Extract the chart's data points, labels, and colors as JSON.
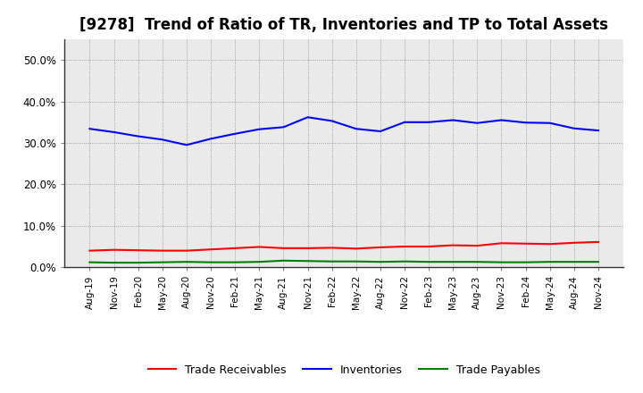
{
  "title": "[9278]  Trend of Ratio of TR, Inventories and TP to Total Assets",
  "x_labels": [
    "Aug-19",
    "Nov-19",
    "Feb-20",
    "May-20",
    "Aug-20",
    "Nov-20",
    "Feb-21",
    "May-21",
    "Aug-21",
    "Nov-21",
    "Feb-22",
    "May-22",
    "Aug-22",
    "Nov-22",
    "Feb-23",
    "May-23",
    "Aug-23",
    "Nov-23",
    "Feb-24",
    "May-24",
    "Aug-24",
    "Nov-24"
  ],
  "inventories": [
    0.334,
    0.326,
    0.316,
    0.308,
    0.295,
    0.31,
    0.322,
    0.333,
    0.338,
    0.362,
    0.353,
    0.334,
    0.328,
    0.35,
    0.35,
    0.355,
    0.348,
    0.355,
    0.349,
    0.348,
    0.335,
    0.33
  ],
  "trade_receivables": [
    0.04,
    0.042,
    0.041,
    0.04,
    0.04,
    0.043,
    0.046,
    0.049,
    0.046,
    0.046,
    0.047,
    0.045,
    0.048,
    0.05,
    0.05,
    0.053,
    0.052,
    0.058,
    0.057,
    0.056,
    0.059,
    0.061
  ],
  "trade_payables": [
    0.012,
    0.011,
    0.011,
    0.012,
    0.013,
    0.012,
    0.012,
    0.013,
    0.016,
    0.015,
    0.014,
    0.014,
    0.013,
    0.014,
    0.013,
    0.013,
    0.013,
    0.012,
    0.012,
    0.013,
    0.013,
    0.013
  ],
  "inventories_color": "#0000FF",
  "trade_receivables_color": "#FF0000",
  "trade_payables_color": "#008000",
  "ylim": [
    0.0,
    0.55
  ],
  "yticks": [
    0.0,
    0.1,
    0.2,
    0.3,
    0.4,
    0.5
  ],
  "background_color": "#FFFFFF",
  "plot_bg_color": "#EAEAEA",
  "grid_color": "#888888",
  "title_fontsize": 12,
  "legend_labels": [
    "Trade Receivables",
    "Inventories",
    "Trade Payables"
  ]
}
